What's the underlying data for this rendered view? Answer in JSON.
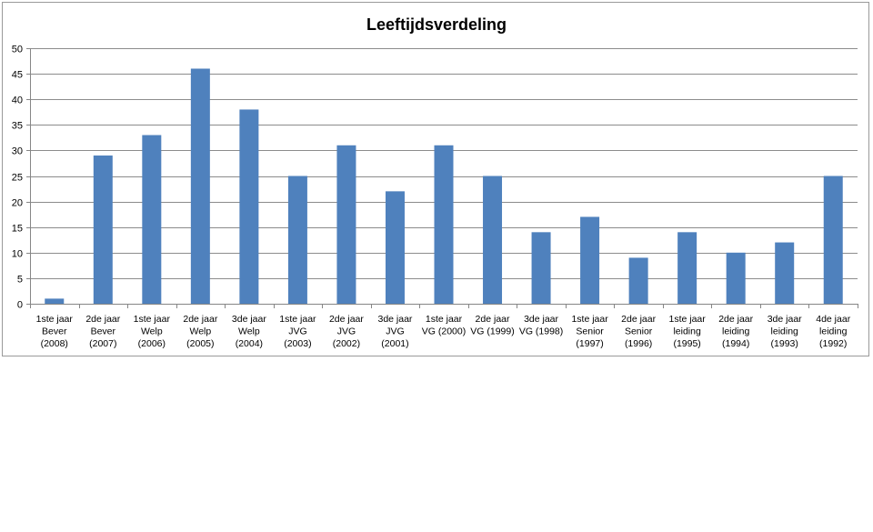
{
  "chart_data": {
    "type": "bar",
    "title": "Leeftijdsverdeling",
    "xlabel": "",
    "ylabel": "",
    "ylim": [
      0,
      50
    ],
    "yticks": [
      0,
      5,
      10,
      15,
      20,
      25,
      30,
      35,
      40,
      45,
      50
    ],
    "grid": true,
    "legend": "none",
    "bar_color": "#4f81bd",
    "categories": [
      [
        "1ste jaar",
        "Bever",
        "(2008)"
      ],
      [
        "2de jaar",
        "Bever",
        "(2007)"
      ],
      [
        "1ste jaar",
        "Welp",
        "(2006)"
      ],
      [
        "2de jaar",
        "Welp",
        "(2005)"
      ],
      [
        "3de jaar",
        "Welp",
        "(2004)"
      ],
      [
        "1ste jaar",
        "JVG",
        "(2003)"
      ],
      [
        "2de jaar",
        "JVG",
        "(2002)"
      ],
      [
        "3de jaar",
        "JVG",
        "(2001)"
      ],
      [
        "1ste jaar",
        "VG (2000)"
      ],
      [
        "2de jaar",
        "VG (1999)"
      ],
      [
        "3de jaar",
        "VG (1998)"
      ],
      [
        "1ste jaar",
        "Senior",
        "(1997)"
      ],
      [
        "2de jaar",
        "Senior",
        "(1996)"
      ],
      [
        "1ste jaar",
        "leiding",
        "(1995)"
      ],
      [
        "2de jaar",
        "leiding",
        "(1994)"
      ],
      [
        "3de jaar",
        "leiding",
        "(1993)"
      ],
      [
        "4de jaar",
        "leiding",
        "(1992)"
      ]
    ],
    "values": [
      1,
      29,
      33,
      46,
      38,
      25,
      31,
      22,
      31,
      25,
      14,
      17,
      9,
      14,
      10,
      12,
      25
    ]
  }
}
